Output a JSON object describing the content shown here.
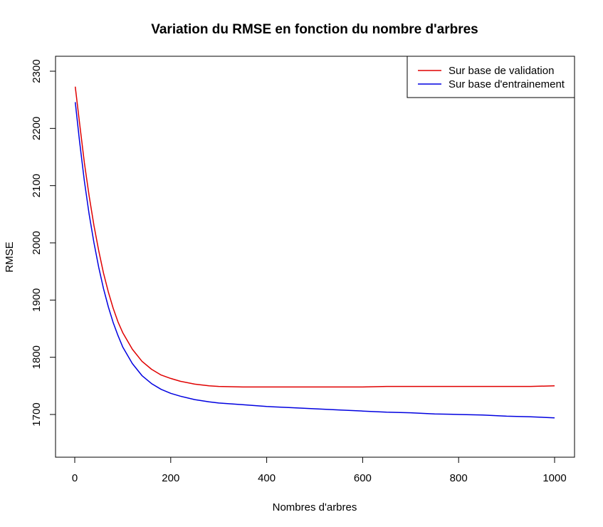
{
  "chart_data": {
    "type": "line",
    "title": "Variation du RMSE en fonction du nombre d'arbres",
    "xlabel": "Nombres d'arbres",
    "ylabel": "RMSE",
    "xlim": [
      0,
      1000
    ],
    "ylim": [
      1700,
      2300
    ],
    "x_ticks": [
      "0",
      "200",
      "400",
      "600",
      "800",
      "1000"
    ],
    "y_ticks": [
      "1700",
      "1800",
      "1900",
      "2000",
      "2100",
      "2200",
      "2300"
    ],
    "grid": false,
    "legend_position": "top-right",
    "series": [
      {
        "name": "Sur base de validation",
        "color": "#e00000",
        "x": [
          1,
          10,
          20,
          30,
          40,
          50,
          60,
          70,
          80,
          90,
          100,
          120,
          140,
          160,
          180,
          200,
          220,
          250,
          280,
          300,
          350,
          400,
          450,
          500,
          550,
          600,
          650,
          700,
          750,
          800,
          850,
          900,
          950,
          1000
        ],
        "y": [
          2273,
          2210,
          2140,
          2082,
          2030,
          1986,
          1947,
          1914,
          1886,
          1862,
          1843,
          1814,
          1793,
          1779,
          1769,
          1763,
          1758,
          1753,
          1750,
          1749,
          1748,
          1748,
          1748,
          1748,
          1748,
          1748,
          1749,
          1749,
          1749,
          1749,
          1749,
          1749,
          1749,
          1750
        ]
      },
      {
        "name": "Sur base d'entrainement",
        "color": "#0000e0",
        "x": [
          1,
          10,
          20,
          30,
          40,
          50,
          60,
          70,
          80,
          90,
          100,
          120,
          140,
          160,
          180,
          200,
          220,
          250,
          280,
          300,
          350,
          400,
          450,
          500,
          550,
          600,
          650,
          700,
          750,
          800,
          850,
          900,
          950,
          1000
        ],
        "y": [
          2246,
          2178,
          2108,
          2050,
          2000,
          1957,
          1920,
          1888,
          1861,
          1838,
          1818,
          1789,
          1768,
          1754,
          1744,
          1737,
          1732,
          1726,
          1722,
          1720,
          1717,
          1714,
          1712,
          1710,
          1708,
          1706,
          1704,
          1703,
          1701,
          1700,
          1699,
          1697,
          1696,
          1694
        ]
      }
    ]
  }
}
